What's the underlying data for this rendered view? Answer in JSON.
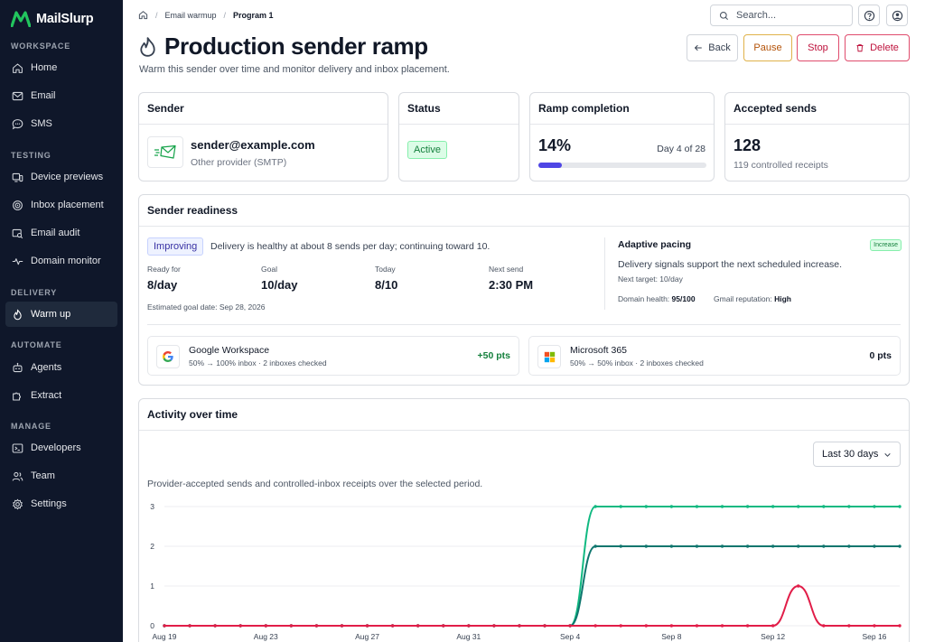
{
  "brand": {
    "name": "MailSlurp",
    "accent": "#22c55e"
  },
  "sidebar": {
    "sections": [
      {
        "label": "WORKSPACE",
        "items": [
          {
            "label": "Home",
            "icon": "home-icon"
          },
          {
            "label": "Email",
            "icon": "mail-icon"
          },
          {
            "label": "SMS",
            "icon": "chat-icon"
          }
        ]
      },
      {
        "label": "TESTING",
        "items": [
          {
            "label": "Device previews",
            "icon": "devices-icon"
          },
          {
            "label": "Inbox placement",
            "icon": "target-icon"
          },
          {
            "label": "Email audit",
            "icon": "audit-icon"
          },
          {
            "label": "Domain monitor",
            "icon": "pulse-icon"
          }
        ]
      },
      {
        "label": "DELIVERY",
        "items": [
          {
            "label": "Warm up",
            "icon": "flame-icon",
            "active": true
          }
        ]
      },
      {
        "label": "AUTOMATE",
        "items": [
          {
            "label": "Agents",
            "icon": "robot-icon"
          },
          {
            "label": "Extract",
            "icon": "puzzle-icon"
          }
        ]
      },
      {
        "label": "MANAGE",
        "items": [
          {
            "label": "Developers",
            "icon": "terminal-icon"
          },
          {
            "label": "Team",
            "icon": "team-icon"
          },
          {
            "label": "Settings",
            "icon": "gear-icon"
          }
        ]
      }
    ]
  },
  "header": {
    "breadcrumb": {
      "parent": "Email warmup",
      "current": "Program 1"
    },
    "search_placeholder": "Search..."
  },
  "page": {
    "title": "Production sender ramp",
    "subtitle": "Warm this sender over time and monitor delivery and inbox placement.",
    "actions": {
      "back": "Back",
      "pause": "Pause",
      "stop": "Stop",
      "delete": "Delete"
    }
  },
  "sender_card": {
    "title": "Sender",
    "email": "sender@example.com",
    "provider": "Other provider (SMTP)"
  },
  "status_card": {
    "title": "Status",
    "status": "Active"
  },
  "ramp_card": {
    "title": "Ramp completion",
    "percent_label": "14%",
    "progress": 0.14,
    "day_label": "Day 4 of 28"
  },
  "accepted_card": {
    "title": "Accepted sends",
    "count": "128",
    "receipts": "119 controlled receipts"
  },
  "readiness": {
    "title": "Sender readiness",
    "badge": "Improving",
    "message": "Delivery is healthy at about 8 sends per day; continuing toward 10.",
    "metrics": [
      {
        "label": "Ready for",
        "value": "8/day"
      },
      {
        "label": "Goal",
        "value": "10/day"
      },
      {
        "label": "Today",
        "value": "8/10"
      },
      {
        "label": "Next send",
        "value": "2:30 PM"
      }
    ],
    "estimated": "Estimated goal date: Sep 28, 2026",
    "pacing": {
      "title": "Adaptive pacing",
      "tag": "Increase",
      "text": "Delivery signals support the next scheduled increase.",
      "next_target": "Next target: 10/day",
      "domain_health_label": "Domain health:",
      "domain_health": "95/100",
      "gmail_label": "Gmail reputation:",
      "gmail": "High"
    },
    "providers": [
      {
        "name": "Google Workspace",
        "detail": "50% → 100% inbox · 2 inboxes checked",
        "pts": "+50 pts",
        "logo": "google-logo-icon"
      },
      {
        "name": "Microsoft 365",
        "detail": "50% → 50% inbox · 2 inboxes checked",
        "pts": "0 pts",
        "logo": "microsoft-logo-icon"
      }
    ]
  },
  "activity": {
    "title": "Activity over time",
    "range": "Last 30 days",
    "caption": "Provider-accepted sends and controlled-inbox receipts over the selected period."
  },
  "chart_data": {
    "type": "line",
    "x_labels": [
      "Aug 19",
      "Aug 23",
      "Aug 27",
      "Aug 31",
      "Sep 4",
      "Sep 8",
      "Sep 12",
      "Sep 16"
    ],
    "x_count": 30,
    "ylim": [
      0,
      3
    ],
    "yticks": [
      0,
      1,
      2,
      3
    ],
    "series": [
      {
        "color": "#10b981",
        "values": [
          0,
          0,
          0,
          0,
          0,
          0,
          0,
          0,
          0,
          0,
          0,
          0,
          0,
          0,
          0,
          0,
          0,
          3,
          3,
          3,
          3,
          3,
          3,
          3,
          3,
          3,
          3,
          3,
          3,
          3
        ]
      },
      {
        "color": "#0f766e",
        "values": [
          0,
          0,
          0,
          0,
          0,
          0,
          0,
          0,
          0,
          0,
          0,
          0,
          0,
          0,
          0,
          0,
          0,
          2,
          2,
          2,
          2,
          2,
          2,
          2,
          2,
          2,
          2,
          2,
          2,
          2
        ]
      },
      {
        "color": "#e11d48",
        "values": [
          0,
          0,
          0,
          0,
          0,
          0,
          0,
          0,
          0,
          0,
          0,
          0,
          0,
          0,
          0,
          0,
          0,
          0,
          0,
          0,
          0,
          0,
          0,
          0,
          0,
          1,
          0,
          0,
          0,
          0
        ]
      }
    ],
    "grid": true
  }
}
